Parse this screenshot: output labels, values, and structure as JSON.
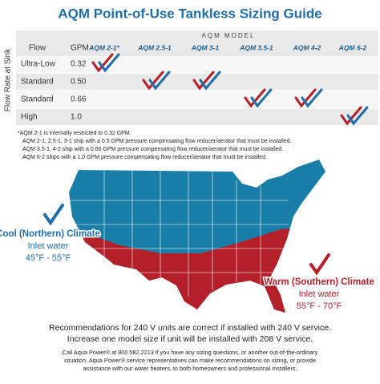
{
  "header": {
    "title": "AQM Point-of-Use Tankless Sizing Guide"
  },
  "table": {
    "side_label": "Flow Rate at Sink",
    "group_label": "AQM MODEL",
    "columns": [
      "Flow",
      "GPM",
      "AQM 2-1*",
      "AQM 2.5-1",
      "AQM 3-1",
      "AQM 3.5-1",
      "AQM 4-2",
      "AQM 6-2"
    ],
    "rows": [
      [
        "Ultra-Low",
        "0.32"
      ],
      [
        "Standard",
        "0.50"
      ],
      [
        "Standard",
        "0.66"
      ],
      [
        "High",
        "1.0"
      ]
    ],
    "checks": [
      [
        0
      ],
      [
        1,
        2
      ],
      [
        3,
        4
      ],
      [
        5
      ]
    ]
  },
  "footnotes": [
    "*AQM 2-1 is internally restricted to 0.32 GPM.",
    "AQM 2-1, 2.5-1, 3-1 ship with a 0.5 GPM pressure compensating flow reducer/aerator that must be installed.",
    "AQM 3.5-1, 4-2 ship with a 0.66 GPM pressure compensating flow reducer/aerator that must be installed.",
    "AQM 6-2 ships with a 1.0 GPM pressure compensating flow reducer/aerator that must be installed."
  ],
  "map": {
    "cool": {
      "title": "Cool (Northern) Climate",
      "line1": "Inlet water",
      "line2": "45°F - 55°F"
    },
    "warm": {
      "title": "Warm (Southern) Climate",
      "line1": "Inlet water",
      "line2": "55°F - 70°F"
    }
  },
  "notes": [
    "Recommendations for 240 V units are correct if installed with 240 V service.",
    "Increase one model size if unit will be installed with 208 V service."
  ],
  "contact": [
    "Call Aqua Power® at 800.582.2213 if you have any sizing questions, or another out-of-the-ordinary",
    "situation. Aqua Power® service representatives can make recommendations on sizing, or provide",
    "assistance with our water heaters, to both homeowners and professional installers."
  ]
}
